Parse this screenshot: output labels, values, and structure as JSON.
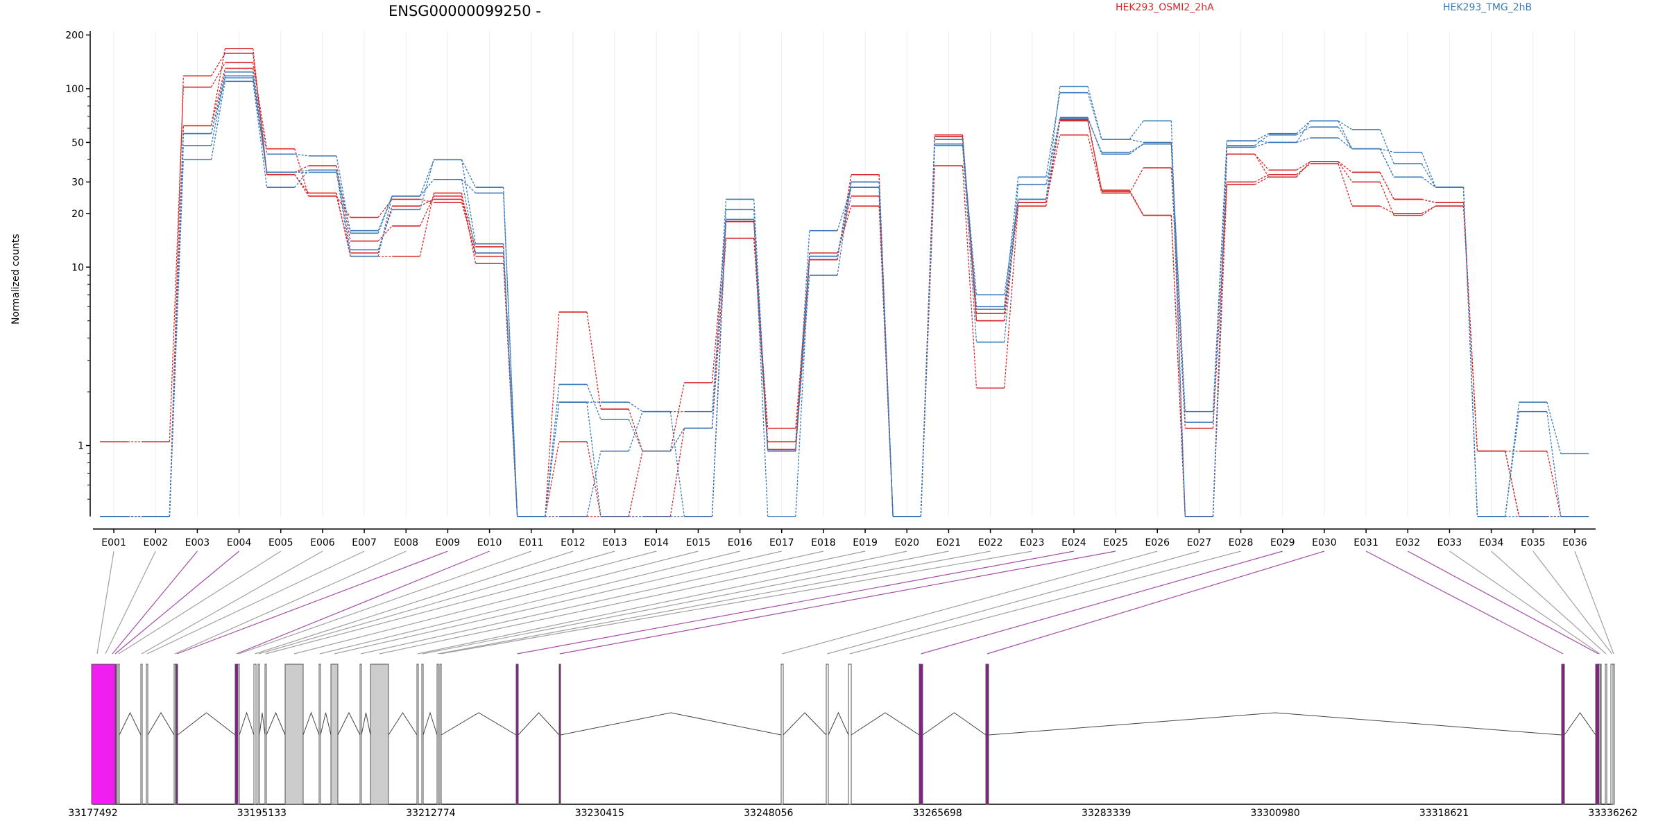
{
  "chart_data": {
    "type": "line",
    "title": "ENSG00000099250 -",
    "ylabel": "Normalized counts",
    "yscale": "log",
    "ylim": [
      0.4,
      210
    ],
    "yticks": [
      {
        "v": 1,
        "label": "1"
      },
      {
        "v": 10,
        "label": "10"
      },
      {
        "v": 20,
        "label": "20"
      },
      {
        "v": 30,
        "label": "30"
      },
      {
        "v": 50,
        "label": "50"
      },
      {
        "v": 100,
        "label": "100"
      },
      {
        "v": 200,
        "label": "200"
      }
    ],
    "categories": [
      "E001",
      "E002",
      "E003",
      "E004",
      "E005",
      "E006",
      "E007",
      "E008",
      "E009",
      "E010",
      "E011",
      "E012",
      "E013",
      "E014",
      "E015",
      "E016",
      "E017",
      "E018",
      "E019",
      "E020",
      "E021",
      "E022",
      "E023",
      "E024",
      "E025",
      "E026",
      "E027",
      "E028",
      "E029",
      "E030",
      "E031",
      "E032",
      "E033",
      "E034",
      "E035",
      "E036"
    ],
    "groups": [
      {
        "name": "HEK293_OSMI2_2hA",
        "color": "#d62728"
      },
      {
        "name": "HEK293_TMG_2hB",
        "color": "#3a7ab8"
      }
    ],
    "series": [
      {
        "group": 0,
        "values": [
          1.05,
          1.05,
          102,
          140,
          46,
          25,
          19,
          24,
          23,
          12,
          0.4,
          1.05,
          0.4,
          0.4,
          0.4,
          18,
          0.95,
          11.5,
          25,
          0.4,
          54,
          5,
          23,
          55,
          26,
          36,
          1.25,
          30,
          33,
          38,
          22,
          20,
          22,
          0.93,
          0.4,
          0.4
        ]
      },
      {
        "group": 0,
        "values": [
          0.4,
          0.4,
          118,
          158,
          34,
          37,
          14,
          17,
          25,
          13,
          0.4,
          5.6,
          1.6,
          0.93,
          2.25,
          18,
          1.05,
          12,
          22,
          0.4,
          37,
          2.1,
          22,
          66,
          27,
          19.5,
          0.4,
          29,
          32,
          39,
          30,
          19.5,
          22,
          0.93,
          0.93,
          0.4
        ]
      },
      {
        "group": 0,
        "values": [
          0.4,
          0.4,
          62,
          168,
          33,
          26,
          11.5,
          11.5,
          26,
          10.5,
          0.4,
          0.4,
          0.4,
          0.93,
          1.25,
          14.5,
          1.25,
          11,
          33,
          0.4,
          55,
          5.5,
          23,
          67,
          27,
          19.5,
          0.4,
          43,
          35,
          39,
          34,
          24,
          23,
          0.93,
          0.4,
          0.4
        ]
      },
      {
        "group": 0,
        "values": [
          0.4,
          0.4,
          62,
          130,
          33,
          25,
          12,
          22,
          24,
          11.5,
          0.4,
          0.4,
          0.4,
          0.4,
          1.25,
          14.5,
          0.95,
          11,
          33,
          0.4,
          55,
          5,
          23,
          67,
          26.5,
          19.5,
          0.4,
          43,
          32,
          39,
          34,
          24,
          23,
          0.93,
          0.4,
          0.4
        ]
      },
      {
        "group": 1,
        "values": [
          0.4,
          0.4,
          40,
          110,
          28,
          35,
          16,
          25,
          31,
          26,
          0.4,
          2.2,
          1.4,
          0.93,
          1.25,
          24,
          0.93,
          16,
          28,
          0.4,
          48,
          3.8,
          29,
          68,
          44,
          49,
          1.35,
          48,
          55,
          61,
          46,
          32,
          28,
          0.4,
          1.75,
          0.9
        ]
      },
      {
        "group": 1,
        "values": [
          0.4,
          0.4,
          48,
          118,
          34,
          35,
          12.5,
          21,
          40,
          13.5,
          0.4,
          1.75,
          1.75,
          1.55,
          1.55,
          18.5,
          0.93,
          9,
          30,
          0.4,
          52,
          6,
          32,
          95,
          52,
          50,
          1.55,
          51,
          50,
          66,
          59,
          38,
          28,
          0.4,
          1.55,
          0.4
        ]
      },
      {
        "group": 1,
        "values": [
          0.4,
          0.4,
          56,
          124,
          43,
          42,
          15.5,
          25,
          40,
          28,
          0.4,
          0.4,
          0.93,
          1.55,
          0.4,
          21,
          0.4,
          11.5,
          30,
          0.4,
          49,
          7,
          24,
          103,
          52,
          66,
          0.4,
          51,
          56,
          66,
          46,
          44,
          28,
          0.4,
          0.4,
          0.4
        ]
      },
      {
        "group": 1,
        "values": [
          0.4,
          0.4,
          56,
          115,
          34,
          34,
          11.5,
          25,
          31,
          12,
          0.4,
          1.75,
          0.4,
          0.4,
          0.4,
          18.5,
          0.93,
          11.5,
          28,
          0.4,
          52,
          5.8,
          24,
          69,
          43,
          49,
          0.4,
          47,
          50,
          53,
          46,
          32,
          28,
          0.4,
          0.4,
          0.4
        ]
      }
    ],
    "genomic_axis": {
      "ticks": [
        "33177492",
        "33195133",
        "33212774",
        "33230415",
        "33248056",
        "33265698",
        "33283339",
        "33300980",
        "33318621",
        "33336262"
      ]
    },
    "connector_highlight_color": "#a64ca6",
    "connector_color": "#a0a0a0",
    "highlighted_exons": [
      "E003",
      "E004",
      "E009",
      "E010",
      "E024",
      "E025",
      "E029",
      "E030",
      "E031",
      "E032"
    ],
    "gene_model": {
      "highlight_fill": "#f01ef0",
      "gray_fill": "#cccccc"
    }
  }
}
